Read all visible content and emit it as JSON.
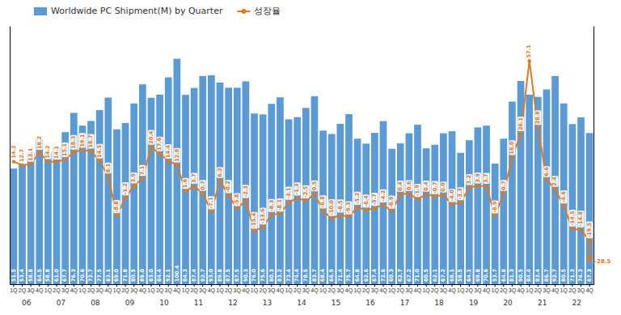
{
  "chart_data": {
    "type": "bar",
    "categories": [
      "1Q",
      "2Q",
      "3Q",
      "4Q",
      "1Q",
      "2Q",
      "3Q",
      "4Q",
      "1Q",
      "2Q",
      "3Q",
      "4Q",
      "1Q",
      "2Q",
      "3Q",
      "4Q",
      "1Q",
      "2Q",
      "3Q",
      "4Q",
      "1Q",
      "2Q",
      "3Q",
      "4Q",
      "1Q",
      "2Q",
      "3Q",
      "4Q",
      "1Q",
      "2Q",
      "3Q",
      "4Q",
      "1Q",
      "2Q",
      "3Q",
      "4Q",
      "1Q",
      "2Q",
      "3Q",
      "4Q",
      "1Q",
      "2Q",
      "3Q",
      "4Q",
      "1Q",
      "2Q",
      "3Q",
      "4Q",
      "1Q",
      "2Q",
      "3Q",
      "4Q",
      "1Q",
      "2Q",
      "3Q",
      "4Q",
      "1Q",
      "2Q",
      "3Q",
      "4Q",
      "1Q",
      "2Q",
      "3Q",
      "4Q",
      "1Q",
      "2Q",
      "3Q",
      "4Q"
    ],
    "years": [
      "06",
      "06",
      "06",
      "06",
      "07",
      "07",
      "07",
      "07",
      "08",
      "08",
      "08",
      "08",
      "09",
      "09",
      "09",
      "09",
      "10",
      "10",
      "10",
      "10",
      "11",
      "11",
      "11",
      "11",
      "12",
      "12",
      "12",
      "12",
      "13",
      "13",
      "13",
      "13",
      "14",
      "14",
      "14",
      "14",
      "15",
      "15",
      "15",
      "15",
      "16",
      "16",
      "16",
      "16",
      "17",
      "17",
      "17",
      "17",
      "18",
      "18",
      "18",
      "18",
      "19",
      "19",
      "19",
      "19",
      "20",
      "20",
      "20",
      "20",
      "21",
      "21",
      "21",
      "21",
      "22",
      "22",
      "22",
      "22"
    ],
    "series": [
      {
        "name": "Worldwide PC Shipment(M) by Quarter",
        "type": "bar",
        "color": "#5b9bd5",
        "values": [
          51.5,
          53.4,
          58.8,
          64.5,
          58.8,
          61.0,
          67.7,
          76.3,
          70.6,
          72.7,
          77.5,
          83.1,
          69.0,
          71.8,
          80.5,
          89.0,
          83.0,
          84.4,
          92.1,
          100.4,
          84.3,
          87.4,
          92.7,
          93.0,
          89.8,
          87.5,
          87.5,
          90.3,
          76.0,
          75.6,
          80.3,
          83.2,
          73.4,
          74.4,
          78.5,
          83.7,
          68.4,
          66.9,
          71.4,
          75.7,
          64.8,
          62.6,
          67.4,
          72.6,
          60.3,
          62.7,
          67.2,
          71.0,
          60.5,
          62.1,
          67.2,
          68.1,
          58.5,
          64.1,
          69.8,
          70.6,
          53.7,
          64.8,
          81.3,
          90.5,
          84.4,
          83.4,
          86.7,
          92.7,
          80.5,
          71.3,
          74.3,
          67.3
        ],
        "value_labels": [
          "51.5",
          "53.4",
          "58.8",
          "64.5",
          "58.8",
          "61.0",
          "67.7",
          "76.3",
          "70.6",
          "72.7",
          "77.5",
          "83.1",
          "69.0",
          "71.8",
          "80.5",
          "89.0",
          "83.0",
          "84.4",
          "92.1",
          "100.4",
          "84.3",
          "87.4",
          "92.7",
          "93.0",
          "89.8",
          "87.5",
          "87.5",
          "90.3",
          "76.0",
          "75.6",
          "80.3",
          "83.2",
          "73.4",
          "74.4",
          "78.5",
          "83.7",
          "68.4",
          "66.9",
          "71.4",
          "75.7",
          "64.8",
          "62.6",
          "67.4",
          "72.6",
          "60.3",
          "62.7",
          "67.2",
          "71.0",
          "60.5",
          "62.1",
          "67.2",
          "68.1",
          "58.5",
          "64.1",
          "69.8",
          "70.6",
          "53.7",
          "64.8",
          "81.3",
          "90.5",
          "84.4",
          "83.4",
          "86.7",
          "92.7",
          "80.5",
          "71.3",
          "74.3",
          "67.3"
        ]
      },
      {
        "name": "성장율",
        "type": "line",
        "axis": "y2",
        "color": "#e07820",
        "marker": "circle",
        "values": [
          14.2,
          12.7,
          13.1,
          18.2,
          14.2,
          14.1,
          15.1,
          18.3,
          19.1,
          18.7,
          14.5,
          8.1,
          -8.8,
          -1.2,
          3.9,
          7.1,
          20.4,
          17.6,
          14.4,
          12.8,
          1.6,
          3.7,
          0.7,
          -7.1,
          6.2,
          -0.2,
          -5.8,
          -2.3,
          -15.4,
          -13.6,
          -8.3,
          -8.1,
          -3.1,
          -1.3,
          -2.5,
          0.5,
          -6.8,
          -10.0,
          -8.5,
          -9.3,
          -5.2,
          -6.4,
          -5.7,
          -4.2,
          -6.9,
          0.4,
          0.6,
          -1.9,
          0.4,
          -0.7,
          0.0,
          -4.0,
          -3.3,
          3.2,
          3.9,
          3.7,
          -8.9,
          0.7,
          16.0,
          26.1,
          57.1,
          28.8,
          6.6,
          2.4,
          -4.6,
          -14.5,
          -14.8,
          -19.5
        ],
        "value_labels": [
          "14.2",
          "12.7",
          "13.1",
          "18.2",
          "14.2",
          "14.1",
          "15.1",
          "18.3",
          "19.1",
          "18.7",
          "14.5",
          "8.1",
          "-8.8",
          "-1.2",
          "3.9",
          "7.1",
          "20.4",
          "17.6",
          "14.4",
          "12.8",
          "1.6",
          "3.7",
          "0.7",
          "-7.1",
          "6.2",
          "-0.2",
          "-5.8",
          "-2.3",
          "-15.4",
          "-13.6",
          "-8.3",
          "-8.1",
          "-3.1",
          "-1.3",
          "-2.5",
          "0.5",
          "-6.8",
          "-10.0",
          "-8.5",
          "-9.3",
          "-5.2",
          "-6.4",
          "-5.7",
          "-4.2",
          "-6.9",
          "0.4",
          "0.6",
          "-1.9",
          "0.4",
          "-0.7",
          "0.0",
          "-4.0",
          "-3.3",
          "3.2",
          "3.9",
          "3.7",
          "-8.9",
          "0.7",
          "16.0",
          "26.1",
          "57.1",
          "28.8",
          "6.6",
          "2.4",
          "-4.6",
          "-14.5",
          "-14.8",
          "-19.5"
        ]
      }
    ],
    "annotations": [
      {
        "text": "-28.5",
        "value": -28.5,
        "axis": "y2"
      }
    ],
    "ylim": [
      0,
      115
    ],
    "yticks": [],
    "y2lim": [
      -38,
      72
    ],
    "y2ticks": [],
    "tick_labels": "x",
    "data_labels": true,
    "grid": false,
    "legend": "top-left"
  }
}
